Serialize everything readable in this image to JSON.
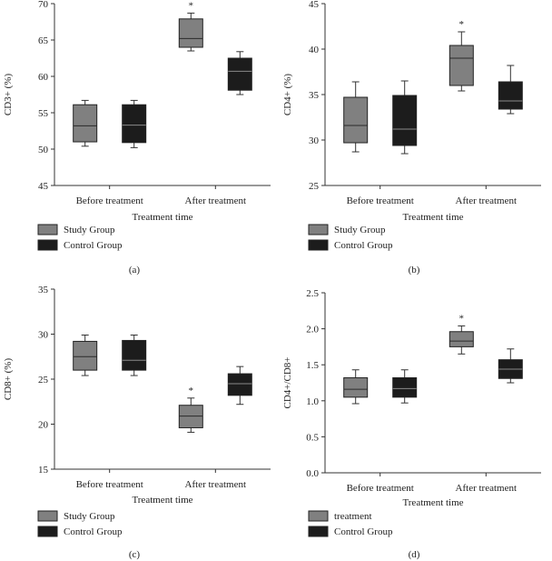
{
  "figure": {
    "colors": {
      "study": "#808080",
      "control": "#1c1c1c",
      "axis": "#333333"
    }
  },
  "chart_data": [
    {
      "type": "box",
      "panel_label": "(a)",
      "ylabel": "CD3+ (%)",
      "xlabel": "Treatment time",
      "ylim": [
        45,
        70
      ],
      "yticks": [
        "45",
        "50",
        "55",
        "60",
        "65",
        "70"
      ],
      "categories": [
        "Before treatment",
        "After treatment"
      ],
      "legend": [
        "Study Group",
        "Control Group"
      ],
      "series": [
        {
          "name": "Study Group",
          "boxes": [
            {
              "min": 50.4,
              "q1": 51.0,
              "median": 53.2,
              "q3": 56.1,
              "max": 56.7,
              "star": ""
            },
            {
              "min": 63.5,
              "q1": 64.0,
              "median": 65.2,
              "q3": 67.9,
              "max": 68.7,
              "star": "*"
            }
          ]
        },
        {
          "name": "Control Group",
          "boxes": [
            {
              "min": 50.2,
              "q1": 50.9,
              "median": 53.3,
              "q3": 56.1,
              "max": 56.7,
              "star": ""
            },
            {
              "min": 57.5,
              "q1": 58.1,
              "median": 60.7,
              "q3": 62.5,
              "max": 63.4,
              "star": ""
            }
          ]
        }
      ]
    },
    {
      "type": "box",
      "panel_label": "(b)",
      "ylabel": "CD4+ (%)",
      "xlabel": "Treatment time",
      "ylim": [
        25,
        45
      ],
      "yticks": [
        "25",
        "30",
        "35",
        "40",
        "45"
      ],
      "categories": [
        "Before treatment",
        "After treatment"
      ],
      "legend": [
        "Study Group",
        "Control Group"
      ],
      "series": [
        {
          "name": "Study Group",
          "boxes": [
            {
              "min": 28.7,
              "q1": 29.7,
              "median": 31.6,
              "q3": 34.7,
              "max": 36.4,
              "star": ""
            },
            {
              "min": 35.4,
              "q1": 36.0,
              "median": 39.0,
              "q3": 40.4,
              "max": 41.9,
              "star": "*"
            }
          ]
        },
        {
          "name": "Control Group",
          "boxes": [
            {
              "min": 28.5,
              "q1": 29.4,
              "median": 31.2,
              "q3": 34.9,
              "max": 36.5,
              "star": ""
            },
            {
              "min": 32.9,
              "q1": 33.4,
              "median": 34.3,
              "q3": 36.4,
              "max": 38.2,
              "star": ""
            }
          ]
        }
      ]
    },
    {
      "type": "box",
      "panel_label": "(c)",
      "ylabel": "CD8+ (%)",
      "xlabel": "Treatment time",
      "ylim": [
        15,
        35
      ],
      "yticks": [
        "15",
        "20",
        "25",
        "30",
        "35"
      ],
      "categories": [
        "Before treatment",
        "After treatment"
      ],
      "legend": [
        "Study Group",
        "Control Group"
      ],
      "series": [
        {
          "name": "Study Group",
          "boxes": [
            {
              "min": 25.4,
              "q1": 26.0,
              "median": 27.5,
              "q3": 29.2,
              "max": 29.9,
              "star": ""
            },
            {
              "min": 19.1,
              "q1": 19.6,
              "median": 20.9,
              "q3": 22.1,
              "max": 22.9,
              "star": "*"
            }
          ]
        },
        {
          "name": "Control Group",
          "boxes": [
            {
              "min": 25.4,
              "q1": 26.0,
              "median": 27.1,
              "q3": 29.3,
              "max": 29.9,
              "star": ""
            },
            {
              "min": 22.2,
              "q1": 23.2,
              "median": 24.5,
              "q3": 25.6,
              "max": 26.4,
              "star": ""
            }
          ]
        }
      ]
    },
    {
      "type": "box",
      "panel_label": "(d)",
      "ylabel": "CD4+/CD8+",
      "xlabel": "Treatment time",
      "ylim": [
        0,
        2.5
      ],
      "yticks": [
        "0.0",
        "0.5",
        "1.0",
        "1.5",
        "2.0",
        "2.5"
      ],
      "categories": [
        "Before treatment",
        "After treatment"
      ],
      "legend": [
        "treatment",
        "Control Group"
      ],
      "series": [
        {
          "name": "treatment",
          "boxes": [
            {
              "min": 0.96,
              "q1": 1.05,
              "median": 1.16,
              "q3": 1.32,
              "max": 1.43,
              "star": ""
            },
            {
              "min": 1.65,
              "q1": 1.75,
              "median": 1.83,
              "q3": 1.96,
              "max": 2.04,
              "star": "*"
            }
          ]
        },
        {
          "name": "Control Group",
          "boxes": [
            {
              "min": 0.97,
              "q1": 1.05,
              "median": 1.17,
              "q3": 1.32,
              "max": 1.43,
              "star": ""
            },
            {
              "min": 1.25,
              "q1": 1.31,
              "median": 1.44,
              "q3": 1.57,
              "max": 1.72,
              "star": ""
            }
          ]
        }
      ]
    }
  ]
}
